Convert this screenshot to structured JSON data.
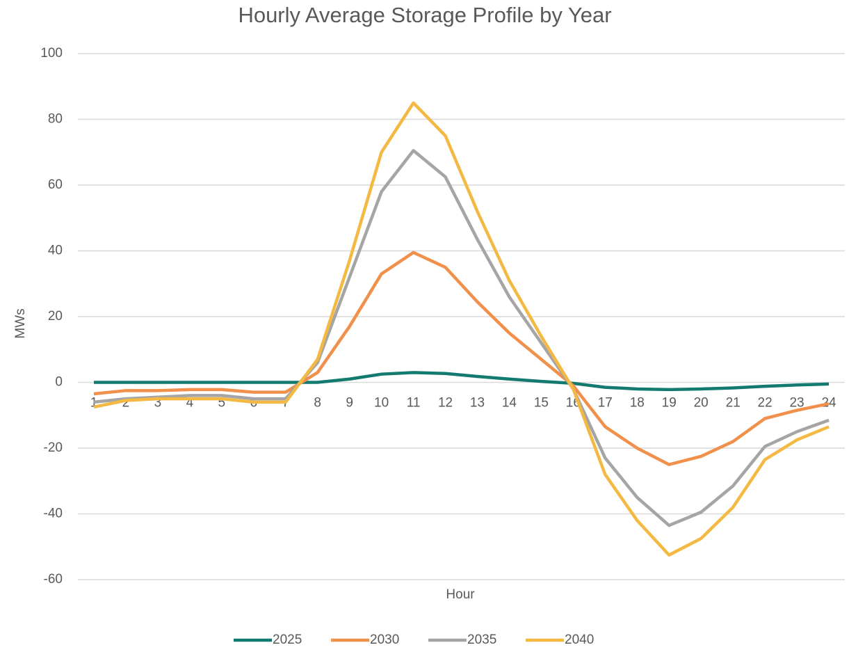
{
  "chart_data": {
    "type": "line",
    "title": "Hourly Average Storage Profile by Year",
    "x_label": "Hour",
    "y_label": "MWs",
    "categories": [
      "1",
      "2",
      "3",
      "4",
      "5",
      "6",
      "7",
      "8",
      "9",
      "10",
      "11",
      "12",
      "13",
      "14",
      "15",
      "16",
      "17",
      "18",
      "19",
      "20",
      "21",
      "22",
      "23",
      "24"
    ],
    "series": [
      {
        "name": "2025",
        "color": "#127a6f",
        "values": [
          0,
          0,
          0,
          0,
          0,
          0,
          0,
          0,
          1,
          2.5,
          3,
          2.7,
          1.8,
          1,
          0.3,
          -0.3,
          -1.5,
          -2,
          -2.2,
          -2,
          -1.7,
          -1.2,
          -0.8,
          -0.5
        ]
      },
      {
        "name": "2030",
        "color": "#f0904b",
        "values": [
          -3.5,
          -2.5,
          -2.5,
          -2.2,
          -2.2,
          -3,
          -3,
          3,
          17,
          33,
          39.5,
          35,
          24.5,
          15,
          7,
          -1,
          -13.5,
          -20,
          -25,
          -22.5,
          -18,
          -11,
          -8.5,
          -6.5
        ]
      },
      {
        "name": "2035",
        "color": "#a5a5a5",
        "values": [
          -6,
          -5,
          -4.5,
          -4,
          -4,
          -5,
          -5,
          6,
          32,
          58,
          70.5,
          62.5,
          43.5,
          26,
          12,
          -2,
          -23,
          -35,
          -43.5,
          -39.5,
          -31.5,
          -19.5,
          -15,
          -11.5
        ]
      },
      {
        "name": "2040",
        "color": "#f4b942",
        "values": [
          -7.5,
          -5.5,
          -5,
          -5,
          -5,
          -6,
          -6,
          7,
          37,
          70,
          85,
          75,
          52,
          31,
          14,
          -2,
          -28,
          -42,
          -52.5,
          -47.5,
          -38,
          -23.5,
          -17.5,
          -13.5
        ]
      }
    ],
    "ylim": [
      -60,
      100
    ],
    "yticks": [
      -60,
      -40,
      -20,
      0,
      20,
      40,
      60,
      80,
      100
    ],
    "grid": true,
    "legend": "bottom"
  }
}
